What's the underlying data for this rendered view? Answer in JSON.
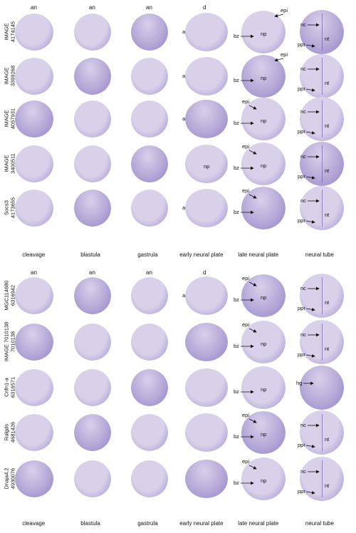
{
  "colors": {
    "embryo_light": "#d9d0ea",
    "embryo_mid": "#b6a9d8",
    "embryo_dark": "#7f6fbf",
    "arrow": "#111111"
  },
  "panel_top": {
    "stage_orientation": [
      "an",
      "an",
      "an",
      "d"
    ],
    "rows": [
      {
        "label_line1": "IMAGE",
        "label_line2": "4174145",
        "a": "a",
        "late": [
          "epi",
          "bz",
          "np"
        ],
        "tube": [
          "nc",
          "ppr",
          "nt"
        ]
      },
      {
        "label_line1": "IMAGE",
        "label_line2": "3399268",
        "a": "a",
        "late": [
          "epi",
          "bz",
          "np"
        ],
        "tube": [
          "nc",
          "ppr",
          "nt"
        ]
      },
      {
        "label_line1": "IMAGE",
        "label_line2": "4057931",
        "a": "a",
        "late": [
          "epi",
          "bz",
          "np"
        ],
        "tube": [
          "nc",
          "ppr",
          "nt"
        ]
      },
      {
        "label_line1": "IMAGE",
        "label_line2": "3400511",
        "a": "",
        "late": [
          "epi",
          "bz",
          "np"
        ],
        "tube": [
          "nc",
          "ppr",
          "nt"
        ]
      },
      {
        "label_line1": "Socs3",
        "label_line2": "4173655",
        "a": "a",
        "late": [
          "epi",
          "bz",
          ""
        ],
        "tube": [
          "nc",
          "ppr",
          "nt"
        ]
      }
    ],
    "row3_np_early": "np",
    "stages": [
      "cleavage",
      "blastula",
      "gastrula",
      "early neural plate",
      "late neural plate",
      "neural tube"
    ]
  },
  "panel_bottom": {
    "stage_orientation": [
      "an",
      "an",
      "an",
      "d"
    ],
    "rows": [
      {
        "label_line1": "MGC114680",
        "label_line2": "6316942",
        "a": "a",
        "late": [
          "epi",
          "bz",
          "np"
        ],
        "tube": [
          "nc",
          "ppr",
          "nt"
        ]
      },
      {
        "label_line1": "IMAGE 7010138",
        "label_line2": "7010138",
        "a": "",
        "late": [
          "epi",
          "bz",
          "np"
        ],
        "tube": [
          "nc",
          "ppr",
          "nt"
        ]
      },
      {
        "label_line1": "Cnfn1-a",
        "label_line2": "6316571",
        "a": "",
        "late": [
          "",
          "bz",
          "np"
        ],
        "tube": [
          "hg",
          "",
          ""
        ]
      },
      {
        "label_line1": "Ralgds",
        "label_line2": "4681426",
        "a": "",
        "late": [
          "epi",
          "bz",
          "np"
        ],
        "tube": [
          "nc",
          "ppr",
          "nt"
        ]
      },
      {
        "label_line1": "Dnaja4.2",
        "label_line2": "4930076",
        "a": "",
        "late": [
          "epi",
          "bz",
          "np"
        ],
        "tube": [
          "nc",
          "ppr",
          "nt"
        ]
      }
    ],
    "stages": [
      "cleavage",
      "blastula",
      "gastrula",
      "early neural plate",
      "late neural plate",
      "neural tube"
    ]
  }
}
